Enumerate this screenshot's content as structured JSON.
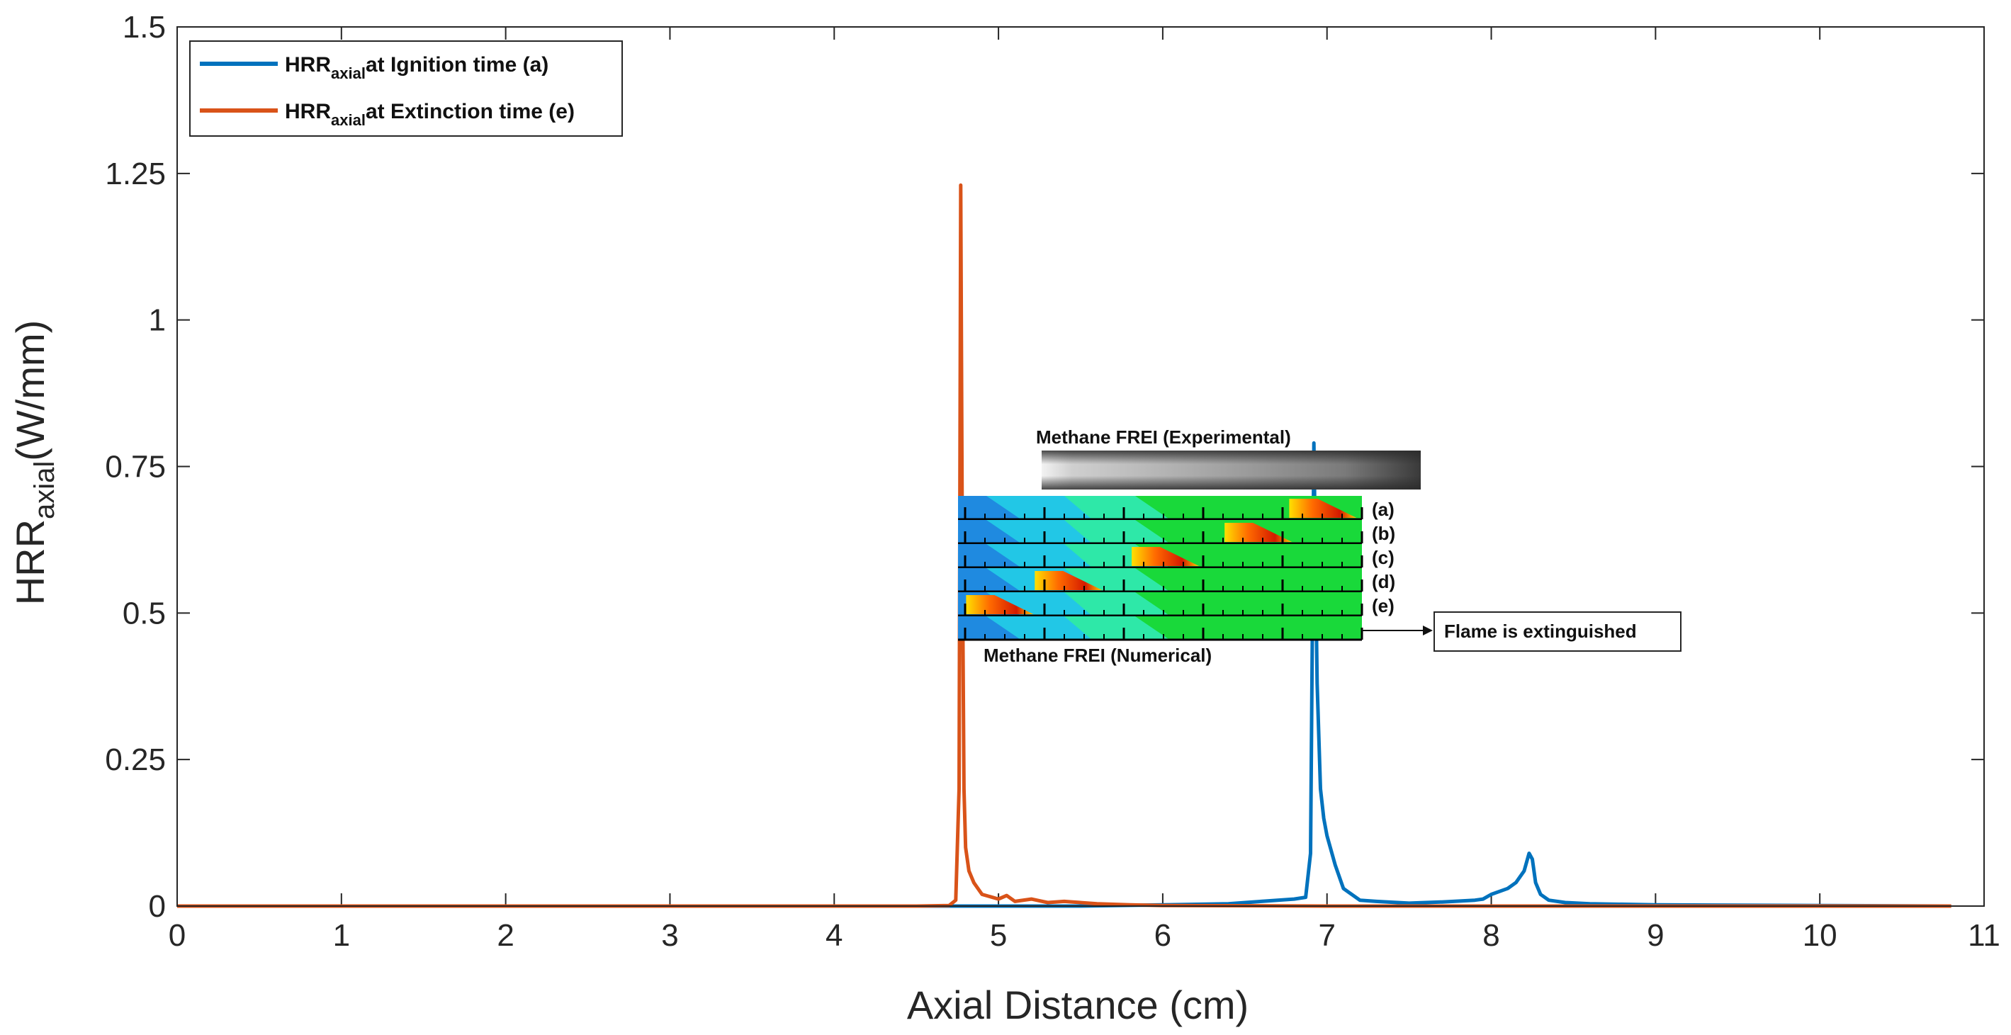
{
  "chart_data": {
    "type": "line",
    "xlabel": "Axial Distance (cm)",
    "ylabel_main": "HRR",
    "ylabel_sub": "axial",
    "ylabel_unit": "(W/mm)",
    "xlim": [
      0,
      11
    ],
    "ylim": [
      0,
      1.5
    ],
    "xticks": [
      "0",
      "1",
      "2",
      "3",
      "4",
      "5",
      "6",
      "7",
      "8",
      "9",
      "10",
      "11"
    ],
    "yticks": [
      "0",
      "0.25",
      "0.5",
      "0.75",
      "1",
      "1.25",
      "1.5"
    ],
    "legend_position": "top-left",
    "legend": [
      {
        "main": "HRR",
        "sub": "axial",
        "text": "at Ignition time (a)",
        "color": "#0072BD"
      },
      {
        "main": "HRR",
        "sub": "axial",
        "text": "at Extinction time (e)",
        "color": "#D95319"
      }
    ],
    "series": [
      {
        "color": "#0072BD",
        "x": [
          0,
          5.5,
          6.0,
          6.4,
          6.6,
          6.8,
          6.87,
          6.9,
          6.92,
          6.94,
          6.96,
          6.98,
          7.0,
          7.05,
          7.1,
          7.2,
          7.3,
          7.5,
          7.7,
          7.9,
          7.95,
          8.0,
          8.1,
          8.15,
          8.2,
          8.23,
          8.25,
          8.27,
          8.3,
          8.35,
          8.45,
          8.6,
          9.0,
          10.0,
          10.8
        ],
        "y": [
          0,
          0,
          0.002,
          0.004,
          0.008,
          0.012,
          0.015,
          0.09,
          0.79,
          0.38,
          0.2,
          0.15,
          0.12,
          0.07,
          0.03,
          0.01,
          0.008,
          0.005,
          0.007,
          0.01,
          0.012,
          0.02,
          0.03,
          0.04,
          0.06,
          0.09,
          0.08,
          0.04,
          0.02,
          0.01,
          0.006,
          0.004,
          0.002,
          0.001,
          0
        ]
      },
      {
        "color": "#D95319",
        "x": [
          0,
          4.5,
          4.7,
          4.74,
          4.76,
          4.77,
          4.78,
          4.79,
          4.8,
          4.82,
          4.85,
          4.9,
          5.0,
          5.05,
          5.1,
          5.2,
          5.3,
          5.4,
          5.6,
          5.8,
          6.0,
          7.0,
          8.0,
          10.8
        ],
        "y": [
          0,
          0,
          0.001,
          0.01,
          0.2,
          1.23,
          0.6,
          0.2,
          0.1,
          0.06,
          0.04,
          0.02,
          0.012,
          0.018,
          0.008,
          0.012,
          0.006,
          0.008,
          0.004,
          0.002,
          0.001,
          0,
          0,
          0
        ]
      }
    ],
    "inset": {
      "experimental_label": "Methane FREI (Experimental)",
      "numerical_label": "Methane FREI (Numerical)",
      "row_labels": [
        "(a)",
        "(b)",
        "(c)",
        "(d)",
        "(e)"
      ],
      "flame_positions": [
        0.82,
        0.66,
        0.43,
        0.19,
        0.02
      ],
      "annotation": "Flame is extinguished"
    }
  }
}
